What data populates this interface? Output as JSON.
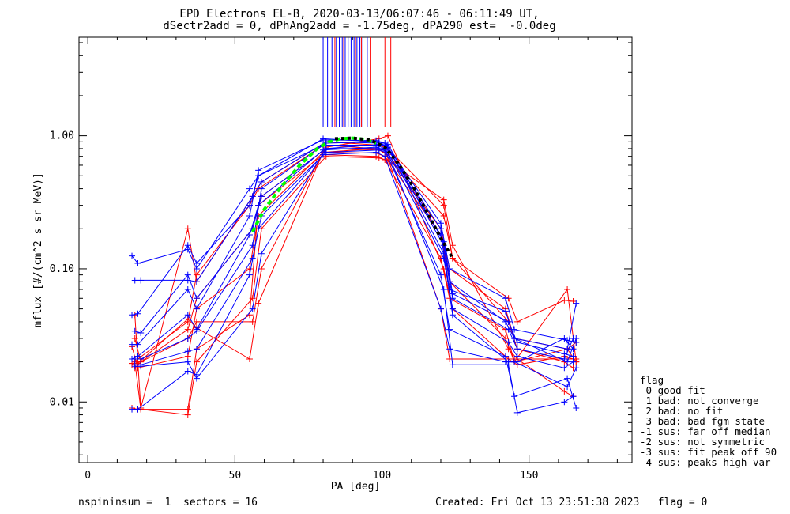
{
  "title": {
    "line1": "EPD Electrons EL-B, 2020-03-13/06:07:46 - 06:11:49 UT,",
    "line2": "dSectr2add = 0, dPhAng2add = -1.75deg, dPA290_est=  -0.0deg"
  },
  "footer": {
    "left": "nspininsum =  1  sectors = 16",
    "right": "Created: Fri Oct 13 23:51:38 2023   flag = 0"
  },
  "legend": {
    "title": "flag",
    "items": [
      " 0 good fit",
      " 1 bad: not converge",
      " 2 bad: no fit",
      " 3 bad: bad fgm state",
      "-1 sus: far off median",
      "-2 sus: not symmetric",
      "-3 sus: fit peak off 90",
      "-4 sus: peaks high var"
    ]
  },
  "colors": {
    "red": "#ff0000",
    "blue": "#0000ff",
    "green": "#00ff00",
    "black": "#000000"
  },
  "chart_data": {
    "type": "line",
    "xlabel": "PA [deg]",
    "ylabel": "mflux [#/(cm^2 s sr MeV)]",
    "xlim": [
      -3,
      185
    ],
    "ylim": [
      0.0035,
      5.5
    ],
    "yscale": "log",
    "xticks": [
      0,
      50,
      100,
      150
    ],
    "xtick_labels": [
      "0",
      "50",
      "100",
      "150"
    ],
    "yticks": [
      0.01,
      0.1,
      1.0
    ],
    "ytick_labels": [
      "0.01",
      "0.10",
      "1.00"
    ],
    "grid": false,
    "legend_placement": "right-outside-bottom",
    "x_groups": [
      [
        16,
        18,
        34,
        37,
        56,
        59,
        81,
        99,
        102,
        121,
        124,
        143,
        146,
        162,
        165
      ],
      [
        15,
        17,
        34,
        37,
        55,
        58,
        80,
        98,
        101,
        120,
        123,
        142,
        145,
        163,
        166
      ]
    ],
    "red_series": [
      [
        0.045,
        0.009,
        0.2,
        0.08,
        0.35,
        0.45,
        0.9,
        0.85,
        0.8,
        0.3,
        0.12,
        0.04,
        0.025,
        0.02,
        0.018
      ],
      [
        0.019,
        0.021,
        0.04,
        0.09,
        0.3,
        0.4,
        0.85,
        0.8,
        0.75,
        0.2,
        0.1,
        0.05,
        0.03,
        0.025,
        0.02
      ],
      [
        0.03,
        0.02,
        0.035,
        0.06,
        0.2,
        0.35,
        0.8,
        0.78,
        0.72,
        0.25,
        0.12,
        0.06,
        0.04,
        0.058,
        0.057
      ],
      [
        0.026,
        0.018,
        0.022,
        0.05,
        0.1,
        0.25,
        0.75,
        0.74,
        0.7,
        0.18,
        0.08,
        0.03,
        0.02,
        0.07,
        0.02
      ],
      [
        0.02,
        0.0088,
        0.008,
        0.02,
        0.06,
        0.2,
        0.7,
        0.68,
        0.65,
        0.33,
        0.15,
        0.025,
        0.021,
        0.012,
        0.011
      ],
      [
        0.009,
        0.0088,
        0.0088,
        0.025,
        0.045,
        0.3,
        0.72,
        0.7,
        0.66,
        0.12,
        0.06,
        0.035,
        0.02,
        0.025,
        0.028
      ],
      [
        0.018,
        0.02,
        0.03,
        0.04,
        0.04,
        0.1,
        0.82,
        0.95,
        1.0,
        0.1,
        0.05,
        0.021,
        0.019,
        0.022,
        0.021
      ],
      [
        0.0195,
        0.0195,
        0.042,
        0.036,
        0.021,
        0.055,
        0.75,
        0.8,
        0.78,
        0.05,
        0.021,
        0.021,
        0.021,
        0.021,
        0.021
      ]
    ],
    "blue_series": [
      [
        0.125,
        0.11,
        0.14,
        0.1,
        0.4,
        0.5,
        0.95,
        0.9,
        0.85,
        0.2,
        0.08,
        0.04,
        0.03,
        0.02,
        0.03
      ],
      [
        0.082,
        0.082,
        0.082,
        0.08,
        0.35,
        0.45,
        0.9,
        0.88,
        0.82,
        0.15,
        0.06,
        0.035,
        0.025,
        0.021,
        0.03
      ],
      [
        0.045,
        0.046,
        0.15,
        0.11,
        0.3,
        0.5,
        0.85,
        0.85,
        0.8,
        0.18,
        0.07,
        0.048,
        0.03,
        0.025,
        0.055
      ],
      [
        0.034,
        0.033,
        0.09,
        0.06,
        0.2,
        0.35,
        0.8,
        0.8,
        0.75,
        0.12,
        0.05,
        0.028,
        0.022,
        0.018,
        0.02
      ],
      [
        0.021,
        0.022,
        0.045,
        0.035,
        0.18,
        0.3,
        0.78,
        0.82,
        0.78,
        0.09,
        0.035,
        0.022,
        0.011,
        0.015,
        0.009
      ],
      [
        0.019,
        0.019,
        0.024,
        0.025,
        0.12,
        0.25,
        0.75,
        0.78,
        0.74,
        0.07,
        0.019,
        0.019,
        0.0083,
        0.01,
        0.011
      ],
      [
        0.0088,
        0.0088,
        0.017,
        0.016,
        0.09,
        0.2,
        0.72,
        0.75,
        0.7,
        0.05,
        0.025,
        0.02,
        0.02,
        0.013,
        0.018
      ],
      [
        0.0185,
        0.0185,
        0.02,
        0.015,
        0.05,
        0.13,
        0.8,
        0.86,
        0.82,
        0.13,
        0.045,
        0.02,
        0.02,
        0.03,
        0.025
      ],
      [
        0.027,
        0.027,
        0.07,
        0.05,
        0.25,
        0.55,
        0.93,
        0.92,
        0.88,
        0.22,
        0.1,
        0.06,
        0.035,
        0.029,
        0.028
      ],
      [
        0.021,
        0.021,
        0.03,
        0.034,
        0.15,
        0.4,
        0.88,
        0.9,
        0.86,
        0.16,
        0.065,
        0.04,
        0.028,
        0.023,
        0.022
      ]
    ],
    "fit_green": {
      "x": [
        56,
        60,
        66,
        72,
        78,
        82,
        86,
        90,
        94,
        98
      ],
      "y": [
        0.19,
        0.28,
        0.42,
        0.6,
        0.8,
        0.9,
        0.95,
        0.96,
        0.94,
        0.88
      ]
    },
    "fit_black": {
      "x": [
        84,
        90,
        96,
        101,
        106,
        111,
        116,
        120,
        124
      ],
      "y": [
        0.95,
        0.96,
        0.93,
        0.82,
        0.6,
        0.4,
        0.25,
        0.17,
        0.12
      ]
    },
    "spikes_blue_x": [
      80.0,
      81.5,
      83.0,
      84.5,
      85.5,
      86.5,
      87.5,
      88.5,
      89.5,
      90.5,
      91.5,
      92.5,
      93.5,
      95.0
    ],
    "spikes_red_x": [
      82.0,
      84.0,
      87.0,
      91.0,
      93.0,
      96.0,
      101.0,
      103.0
    ]
  }
}
